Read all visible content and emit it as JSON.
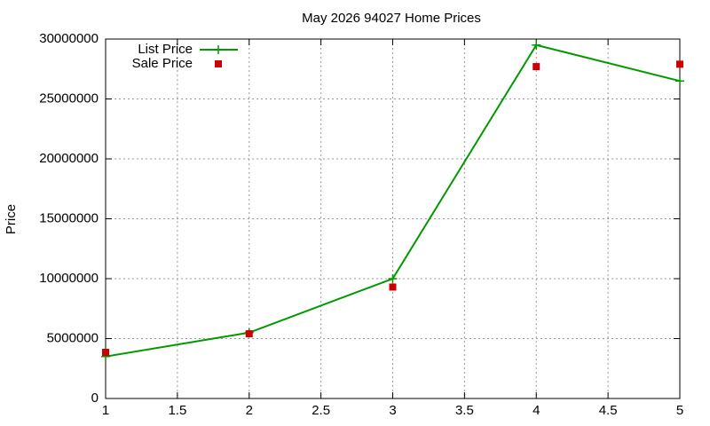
{
  "chart_data": {
    "type": "line",
    "title": "May 2026 94027 Home Prices",
    "ylabel": "Price",
    "x": [
      1,
      2,
      3,
      4,
      5
    ],
    "series": [
      {
        "name": "List Price",
        "color": "#009900",
        "mode": "linespoints",
        "values": [
          3500000,
          5500000,
          10000000,
          29500000,
          26500000
        ]
      },
      {
        "name": "Sale Price",
        "color": "#cc0000",
        "mode": "points",
        "values": [
          3850000,
          5400000,
          9300000,
          27700000,
          27900000
        ]
      }
    ],
    "xlim": [
      1,
      5
    ],
    "xticks": [
      1,
      1.5,
      2,
      2.5,
      3,
      3.5,
      4,
      4.5,
      5
    ],
    "ylim": [
      0,
      30000000
    ],
    "yticks": [
      0,
      5000000,
      10000000,
      15000000,
      20000000,
      25000000,
      30000000
    ],
    "grid": true,
    "legend": "top-left"
  }
}
